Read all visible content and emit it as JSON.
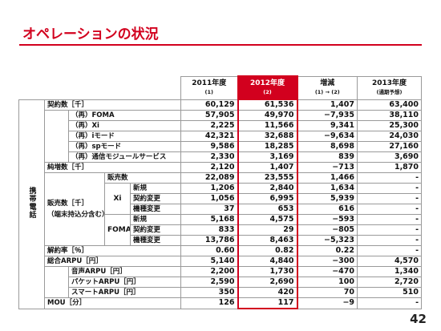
{
  "header": {
    "title": "オペレーションの状況"
  },
  "table": {
    "side_label": "携帯電話",
    "columns": [
      {
        "text": "2011年度",
        "note": "(1)"
      },
      {
        "text": "2012年度",
        "note": "(2)"
      },
      {
        "text": "増減",
        "note": "(1) → (2)"
      },
      {
        "text": "2013年度",
        "note": "(通期予想)"
      }
    ],
    "sales_group_label": "販売数［千］",
    "sales_group_note": "（端末持込分含む）",
    "subgroups": [
      "Xi",
      "FOMA"
    ],
    "rows": [
      {
        "label": "契約数［千］",
        "values": [
          "60,129",
          "61,536",
          "1,407",
          "63,400"
        ]
      },
      {
        "label": "（再）FOMA",
        "values": [
          "57,905",
          "49,970",
          "−7,935",
          "38,110"
        ]
      },
      {
        "label": "（再）Xi",
        "values": [
          "2,225",
          "11,566",
          "9,341",
          "25,300"
        ]
      },
      {
        "label": "（再）iモード",
        "values": [
          "42,321",
          "32,688",
          "−9,634",
          "24,030"
        ]
      },
      {
        "label": "（再）spモード",
        "values": [
          "9,586",
          "18,285",
          "8,698",
          "27,160"
        ]
      },
      {
        "label": "（再）通信モジュールサービス",
        "values": [
          "2,330",
          "3,169",
          "839",
          "3,690"
        ]
      },
      {
        "label": "純増数［千］",
        "values": [
          "2,120",
          "1,407",
          "−713",
          "1,870"
        ]
      },
      {
        "label": "販売数",
        "values": [
          "22,089",
          "23,555",
          "1,466",
          "-"
        ]
      },
      {
        "label": "新規",
        "values": [
          "1,206",
          "2,840",
          "1,634",
          "-"
        ]
      },
      {
        "label": "契約変更",
        "values": [
          "1,056",
          "6,995",
          "5,939",
          "-"
        ]
      },
      {
        "label": "機種変更",
        "values": [
          "37",
          "653",
          "616",
          "-"
        ]
      },
      {
        "label": "新規",
        "values": [
          "5,168",
          "4,575",
          "−593",
          "-"
        ]
      },
      {
        "label": "契約変更",
        "values": [
          "833",
          "29",
          "−805",
          "-"
        ]
      },
      {
        "label": "機種変更",
        "values": [
          "13,786",
          "8,463",
          "−5,323",
          "-"
        ]
      },
      {
        "label": "解約率［％］",
        "values": [
          "0.60",
          "0.82",
          "0.22",
          "-"
        ]
      },
      {
        "label": "総合ARPU［円］",
        "values": [
          "5,140",
          "4,840",
          "−300",
          "4,570"
        ]
      },
      {
        "label": "音声ARPU［円］",
        "values": [
          "2,200",
          "1,730",
          "−470",
          "1,340"
        ]
      },
      {
        "label": "パケットARPU［円］",
        "values": [
          "2,590",
          "2,690",
          "100",
          "2,720"
        ]
      },
      {
        "label": "スマートARPU［円］",
        "values": [
          "350",
          "420",
          "70",
          "510"
        ]
      },
      {
        "label": "MOU［分］",
        "values": [
          "126",
          "117",
          "−9",
          "-"
        ]
      }
    ]
  },
  "footer": {
    "page_number": "42"
  }
}
